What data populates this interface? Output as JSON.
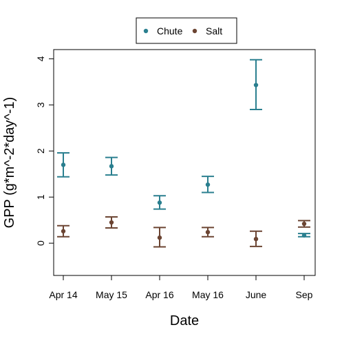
{
  "chart_data": {
    "type": "scatter",
    "categories": [
      "Apr 14",
      "May 15",
      "Apr 16",
      "May 16",
      "June",
      "Sep"
    ],
    "xlabel": "Date",
    "ylabel": "GPP (g*m^-2*day^-1)",
    "ylim": [
      -0.7,
      4.2
    ],
    "yticks": [
      0,
      1,
      2,
      3,
      4
    ],
    "legend_position": "top-center",
    "series": [
      {
        "name": "Chute",
        "color": "#2a7f8f",
        "values": [
          1.7,
          1.67,
          0.88,
          1.27,
          3.43,
          0.17
        ],
        "lower": [
          1.44,
          1.48,
          0.74,
          1.1,
          2.9,
          0.14
        ],
        "upper": [
          1.96,
          1.86,
          1.03,
          1.45,
          3.98,
          0.21
        ]
      },
      {
        "name": "Salt",
        "color": "#6b4432",
        "values": [
          0.26,
          0.45,
          0.12,
          0.24,
          0.09,
          0.42
        ],
        "lower": [
          0.14,
          0.33,
          -0.08,
          0.14,
          -0.07,
          0.35
        ],
        "upper": [
          0.38,
          0.57,
          0.34,
          0.34,
          0.26,
          0.49
        ]
      }
    ]
  }
}
